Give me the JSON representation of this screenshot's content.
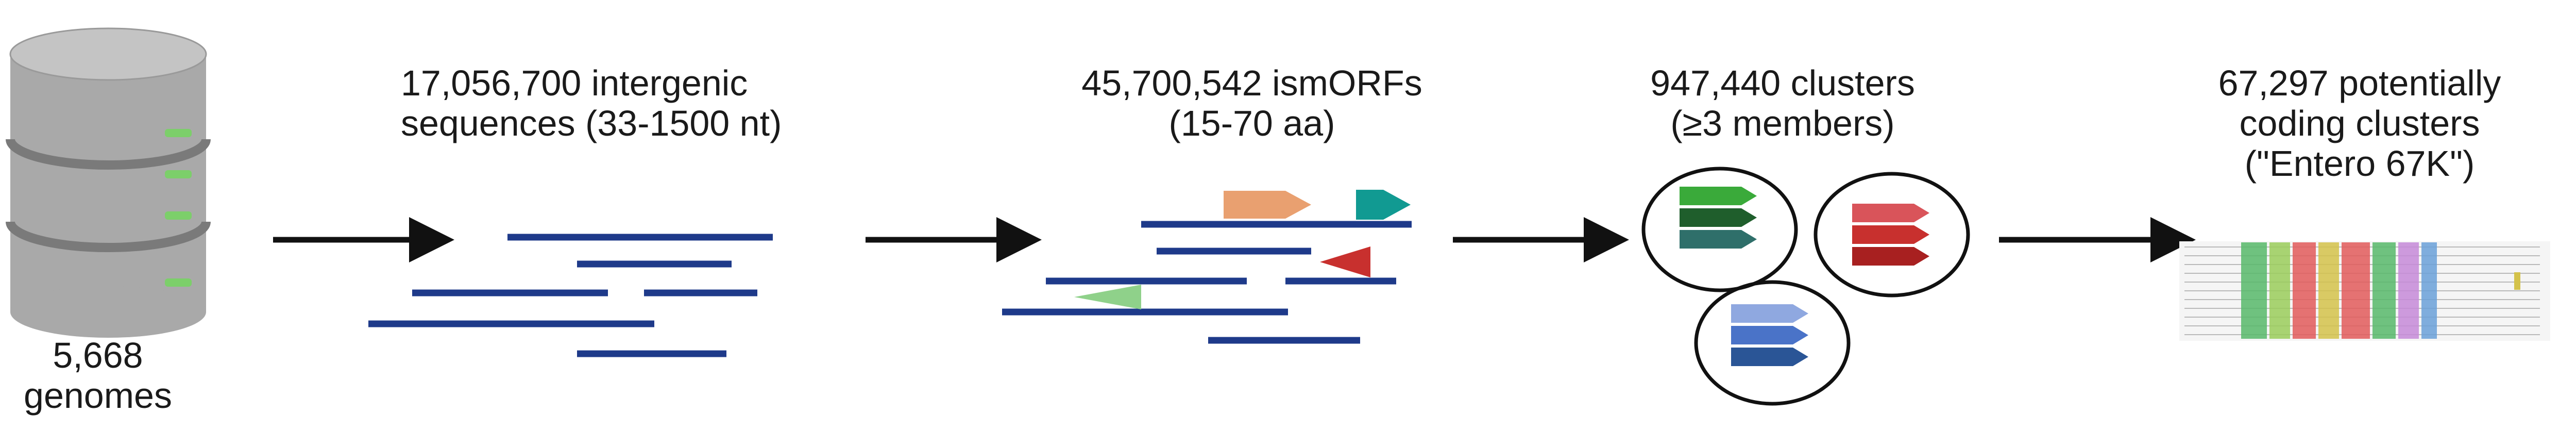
{
  "steps": [
    {
      "id": "genomes",
      "lines": [
        "5,668",
        "genomes"
      ]
    },
    {
      "id": "intergenic",
      "lines": [
        "17,056,700 intergenic",
        "sequences (33-1500 nt)"
      ]
    },
    {
      "id": "ismorfs",
      "lines": [
        "45,700,542 ismORFs",
        "(15-70 aa)"
      ]
    },
    {
      "id": "clusters",
      "lines": [
        "947,440 clusters",
        "(≥3 members)"
      ]
    },
    {
      "id": "coding",
      "lines": [
        "67,297 potentially",
        "coding clusters",
        "(\"Entero 67K\")"
      ]
    }
  ],
  "colors": {
    "line": "#1e3a8a",
    "arrow": "#111111",
    "db_body": "#a9a9a9",
    "db_band": "#7a7a7a",
    "db_led": "#7ccf6a",
    "orf_orange": "#e9a070",
    "orf_teal": "#119a92",
    "orf_red": "#c8302e",
    "orf_green": "#8fd18a",
    "c1": [
      "#3aaa3a",
      "#1f5e2c",
      "#2f6f6a"
    ],
    "c2": [
      "#d9545a",
      "#c8302e",
      "#a82020"
    ],
    "c3": [
      "#8fa8e0",
      "#4a73c8",
      "#2a5596"
    ]
  },
  "icons": [
    "database-icon",
    "arrow-icon",
    "ismorf-arrow-icon",
    "cluster-icon",
    "alignment-icon"
  ]
}
